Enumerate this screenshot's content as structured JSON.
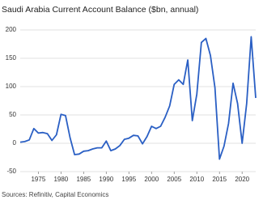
{
  "chart_data": {
    "type": "line",
    "title": "Saudi Arabia Current Account Balance ($bn, annual)",
    "x": [
      1971,
      1972,
      1973,
      1974,
      1975,
      1976,
      1977,
      1978,
      1979,
      1980,
      1981,
      1982,
      1983,
      1984,
      1985,
      1986,
      1987,
      1988,
      1989,
      1990,
      1991,
      1992,
      1993,
      1994,
      1995,
      1996,
      1997,
      1998,
      1999,
      2000,
      2001,
      2002,
      2003,
      2004,
      2005,
      2006,
      2007,
      2008,
      2009,
      2010,
      2011,
      2012,
      2013,
      2014,
      2015,
      2016,
      2017,
      2018,
      2019,
      2020,
      2021,
      2022,
      2023
    ],
    "series": [
      {
        "name": "Current account balance",
        "color": "#2a5fc4",
        "values": [
          2,
          3,
          6,
          26,
          18,
          19,
          17,
          5,
          15,
          51,
          49,
          10,
          -20,
          -19,
          -14,
          -13,
          -10,
          -8,
          -8,
          4,
          -13,
          -10,
          -4,
          7,
          9,
          14,
          13,
          -1,
          12,
          30,
          26,
          30,
          46,
          66,
          104,
          112,
          104,
          147,
          40,
          87,
          178,
          185,
          155,
          98,
          -28,
          -5,
          35,
          106,
          70,
          0,
          70,
          188,
          80
        ]
      }
    ],
    "xlim": [
      1971,
      2023
    ],
    "xticks": [
      1975,
      1980,
      1985,
      1990,
      1995,
      2000,
      2005,
      2010,
      2015,
      2020
    ],
    "ylim": [
      -50,
      200
    ],
    "yticks": [
      -50,
      0,
      50,
      100,
      150,
      200
    ],
    "grid": true,
    "source": "Sources: Refinitiv, Capital Economics"
  }
}
